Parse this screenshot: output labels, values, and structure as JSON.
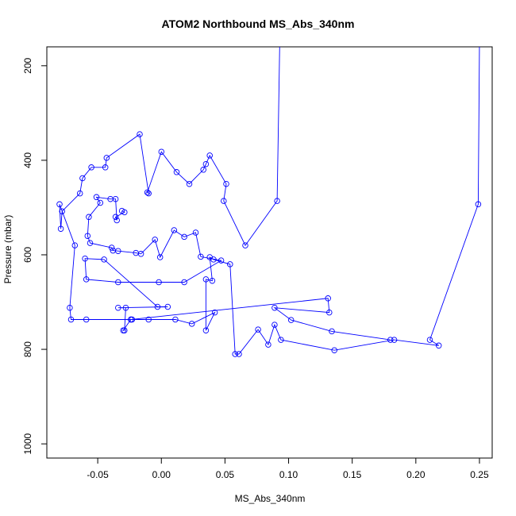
{
  "chart_data": {
    "type": "line",
    "title": "ATOM2 Northbound MS_Abs_340nm",
    "xlabel": "MS_Abs_340nm",
    "ylabel": "Pressure (mbar)",
    "xlim": [
      -0.09,
      0.26
    ],
    "ylim": [
      1030,
      160
    ],
    "y_reversed": true,
    "grid": false,
    "series_color": "#0000FF",
    "marker": "open-circle",
    "x_ticks": [
      -0.05,
      0.0,
      0.05,
      0.1,
      0.15,
      0.2,
      0.25
    ],
    "x_tick_labels": [
      "-0.05",
      "0.00",
      "0.05",
      "0.10",
      "0.15",
      "0.20",
      "0.25"
    ],
    "y_ticks": [
      200,
      400,
      600,
      800,
      1000
    ],
    "y_tick_labels": [
      "200",
      "400",
      "600",
      "800",
      "1000"
    ],
    "series": [
      {
        "points": [
          [
            0.25,
            150
          ],
          [
            0.249,
            493
          ],
          [
            0.211,
            780
          ],
          [
            0.218,
            792
          ],
          [
            0.183,
            780
          ],
          [
            0.136,
            802
          ],
          [
            0.094,
            780
          ],
          [
            0.089,
            748
          ],
          [
            0.084,
            790
          ],
          [
            0.076,
            758
          ],
          [
            0.061,
            810
          ],
          [
            0.058,
            810
          ],
          [
            0.054,
            620
          ],
          [
            0.041,
            610
          ],
          [
            0.038,
            605
          ],
          [
            0.04,
            655
          ],
          [
            0.035,
            652
          ],
          [
            0.035,
            760
          ],
          [
            0.042,
            722
          ],
          [
            0.024,
            746
          ],
          [
            0.011,
            737
          ],
          [
            -0.01,
            737
          ],
          [
            -0.024,
            737
          ],
          [
            -0.023,
            737
          ],
          [
            -0.059,
            737
          ],
          [
            -0.071,
            737
          ],
          [
            -0.072,
            712
          ],
          [
            -0.068,
            580
          ],
          [
            -0.08,
            493
          ],
          [
            -0.079,
            545
          ],
          [
            -0.078,
            508
          ],
          [
            -0.064,
            470
          ],
          [
            -0.062,
            438
          ],
          [
            -0.055,
            415
          ],
          [
            -0.044,
            415
          ],
          [
            -0.043,
            395
          ],
          [
            -0.017,
            345
          ],
          [
            -0.01,
            470
          ],
          [
            -0.011,
            468
          ],
          [
            0.0,
            382
          ],
          [
            0.012,
            425
          ],
          [
            0.022,
            450
          ],
          [
            0.033,
            420
          ],
          [
            0.035,
            408
          ],
          [
            0.038,
            390
          ],
          [
            0.051,
            450
          ],
          [
            0.049,
            486
          ],
          [
            0.066,
            580
          ],
          [
            0.091,
            486
          ],
          [
            0.093,
            160
          ]
        ]
      },
      {
        "points": [
          [
            -0.031,
            507
          ],
          [
            -0.029,
            510
          ],
          [
            -0.036,
            520
          ],
          [
            -0.035,
            527
          ],
          [
            -0.036,
            482
          ],
          [
            -0.04,
            482
          ],
          [
            -0.051,
            478
          ],
          [
            -0.048,
            490
          ],
          [
            -0.057,
            520
          ],
          [
            -0.058,
            560
          ],
          [
            -0.056,
            575
          ],
          [
            -0.039,
            585
          ],
          [
            -0.038,
            591
          ],
          [
            -0.034,
            592
          ],
          [
            -0.02,
            596
          ],
          [
            -0.016,
            598
          ],
          [
            -0.005,
            568
          ],
          [
            -0.001,
            605
          ],
          [
            0.01,
            548
          ],
          [
            0.018,
            562
          ],
          [
            0.027,
            553
          ],
          [
            0.031,
            604
          ],
          [
            0.047,
            612
          ],
          [
            0.018,
            658
          ],
          [
            -0.002,
            658
          ],
          [
            -0.034,
            658
          ],
          [
            -0.059,
            652
          ],
          [
            -0.06,
            608
          ],
          [
            -0.045,
            610
          ],
          [
            -0.003,
            710
          ],
          [
            0.005,
            710
          ],
          [
            -0.034,
            712
          ],
          [
            -0.028,
            712
          ],
          [
            -0.029,
            760
          ],
          [
            -0.03,
            760
          ],
          [
            -0.024,
            737
          ],
          [
            0.131,
            692
          ],
          [
            0.132,
            722
          ],
          [
            0.089,
            712
          ],
          [
            0.102,
            738
          ],
          [
            0.134,
            762
          ],
          [
            0.18,
            780
          ]
        ]
      }
    ]
  }
}
